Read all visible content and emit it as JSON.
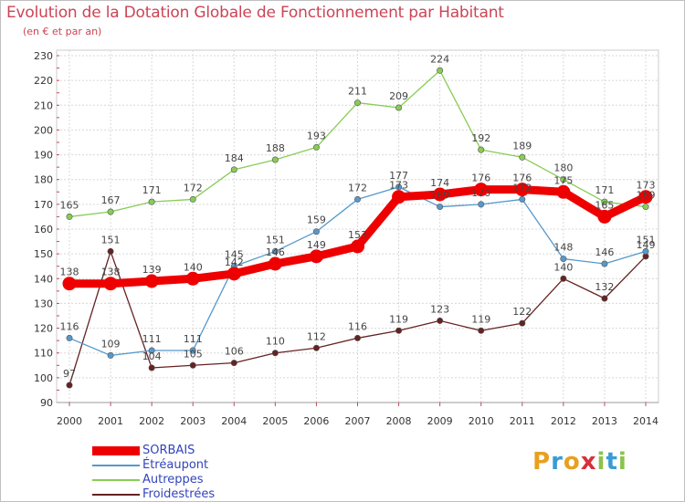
{
  "title": "Evolution de la Dotation Globale de Fonctionnement par Habitant",
  "subtitle": "(en € et par an)",
  "logo": {
    "text": "Proxiti",
    "letters": [
      {
        "char": "P",
        "color": "#e8a020"
      },
      {
        "char": "r",
        "color": "#3a9bd5"
      },
      {
        "char": "o",
        "color": "#e8a020"
      },
      {
        "char": "x",
        "color": "#d6303a"
      },
      {
        "char": "i",
        "color": "#8bc34a"
      },
      {
        "char": "t",
        "color": "#3a9bd5"
      },
      {
        "char": "i",
        "color": "#8bc34a"
      }
    ]
  },
  "chart_data": {
    "type": "line",
    "title": "Evolution de la Dotation Globale de Fonctionnement par Habitant",
    "subtitle": "(en € et par an)",
    "x": [
      "2000",
      "2001",
      "2002",
      "2003",
      "2004",
      "2005",
      "2006",
      "2007",
      "2008",
      "2009",
      "2010",
      "2011",
      "2012",
      "2013",
      "2014"
    ],
    "ylim": [
      90,
      230
    ],
    "yticks": [
      90,
      100,
      110,
      120,
      130,
      140,
      150,
      160,
      170,
      180,
      190,
      200,
      210,
      220,
      230
    ],
    "grid": true,
    "legend_position": "bottom-left",
    "series": [
      {
        "name": "SORBAIS",
        "color": "#ee0000",
        "width": 9,
        "values": [
          138,
          138,
          139,
          140,
          142,
          146,
          149,
          153,
          173,
          174,
          176,
          176,
          175,
          165,
          173
        ]
      },
      {
        "name": "Étréaupont",
        "color": "#5599cc",
        "width": 1.3,
        "values": [
          116,
          109,
          111,
          111,
          145,
          151,
          159,
          172,
          177,
          169,
          170,
          172,
          148,
          146,
          151
        ]
      },
      {
        "name": "Autreppes",
        "color": "#88cc55",
        "width": 1.3,
        "values": [
          165,
          167,
          171,
          172,
          184,
          188,
          193,
          211,
          209,
          224,
          192,
          189,
          180,
          171,
          169
        ]
      },
      {
        "name": "Froidestrées",
        "color": "#662222",
        "width": 1.3,
        "values": [
          97,
          151,
          104,
          105,
          106,
          110,
          112,
          116,
          119,
          123,
          119,
          122,
          140,
          132,
          149
        ]
      }
    ],
    "data_labels": [
      {
        "series": 0,
        "texts": [
          "138",
          "138",
          "139",
          "140",
          "142",
          "146",
          "149",
          "153",
          "173",
          "174",
          "176",
          "176",
          "175",
          "165",
          "173"
        ]
      },
      {
        "series": 1,
        "texts": [
          "116",
          "109",
          "111",
          "111",
          "145",
          "151",
          "159",
          "172",
          "177",
          "169",
          "170",
          "172",
          "148",
          "146",
          "151"
        ]
      },
      {
        "series": 2,
        "texts": [
          "165",
          "167",
          "171",
          "172",
          "184",
          "188",
          "193",
          "211",
          "209",
          "224",
          "192",
          "189",
          "180",
          "171",
          "169"
        ]
      },
      {
        "series": 3,
        "texts": [
          "97",
          "151",
          "104",
          "105",
          "106",
          "110",
          "112",
          "116",
          "119",
          "123",
          "119",
          "122",
          "140",
          "132",
          "149"
        ]
      }
    ]
  }
}
